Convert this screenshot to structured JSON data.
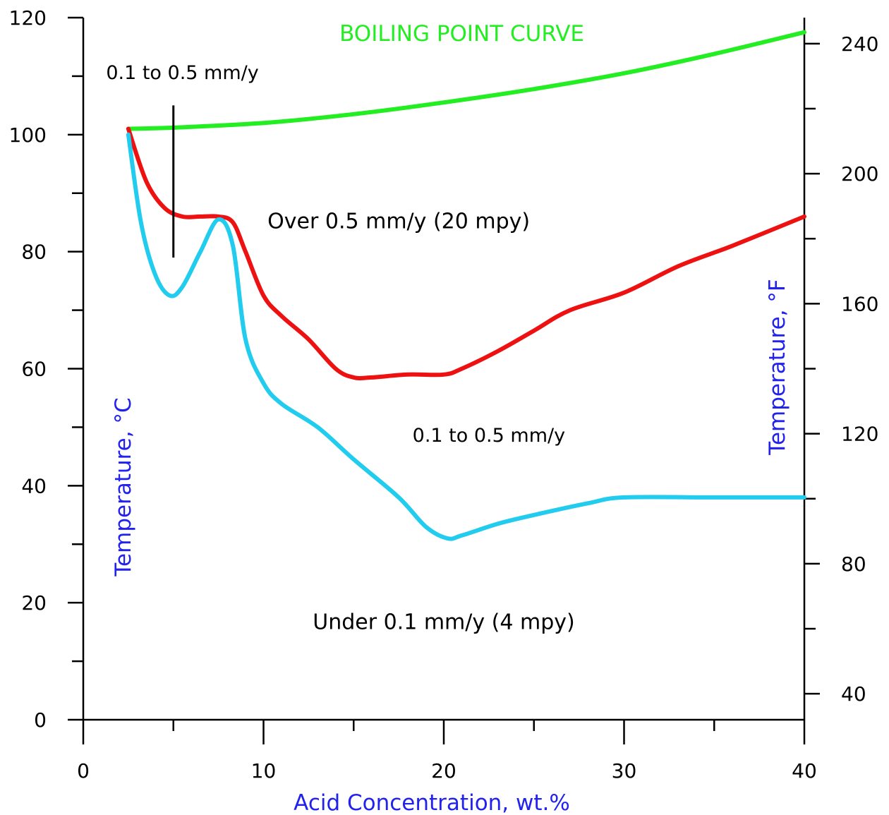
{
  "chart_data": {
    "type": "line",
    "xlabel": "Acid Concentration, wt.%",
    "ylabel": "Temperature, °C",
    "y2label": "Temperature, °F",
    "xlim": [
      0,
      40
    ],
    "ylim": [
      0,
      120
    ],
    "x_ticks": [
      "0",
      "10",
      "20",
      "30",
      "40"
    ],
    "y_ticks": [
      "0",
      "20",
      "40",
      "60",
      "80",
      "100",
      "120"
    ],
    "y2_ticks": [
      "40",
      "80",
      "120",
      "160",
      "200",
      "240"
    ],
    "y2_tick_values_F": [
      40,
      80,
      120,
      160,
      200,
      240
    ],
    "series": [
      {
        "name": "BOILING POINT CURVE",
        "color": "#22ee22",
        "x": [
          2.5,
          5,
          10,
          15,
          20,
          25,
          30,
          35,
          40
        ],
        "y": [
          101,
          101.2,
          102,
          103.5,
          105.5,
          107.8,
          110.5,
          113.8,
          117.5
        ]
      },
      {
        "color": "#ee1111",
        "x": [
          2.5,
          3.5,
          4.5,
          5.5,
          6.5,
          7.5,
          8.3,
          9,
          10,
          11,
          12.5,
          14,
          15,
          16,
          18,
          20,
          21,
          23,
          25,
          27,
          30,
          33,
          36,
          40
        ],
        "y": [
          101,
          92,
          87.5,
          86,
          86,
          86,
          85,
          80,
          72.5,
          69,
          65,
          60,
          58.5,
          58.5,
          59,
          59,
          60,
          63,
          66.5,
          70,
          73,
          77.5,
          81,
          86
        ]
      },
      {
        "color": "#22ccee",
        "x": [
          2.5,
          3.2,
          4,
          4.8,
          5.5,
          6.5,
          7.5,
          8.3,
          9,
          10,
          11,
          13,
          15,
          17.5,
          19,
          20.2,
          21,
          23,
          25,
          28,
          30,
          35,
          40
        ],
        "y": [
          100,
          85,
          76,
          72.5,
          74,
          80,
          85.5,
          81,
          65,
          57.5,
          54,
          50,
          44.5,
          38,
          33,
          31,
          31.5,
          33.5,
          35,
          37,
          38,
          38,
          38
        ]
      }
    ],
    "annotations": [
      {
        "text": "BOILING POINT CURVE",
        "x": 21,
        "y": 116
      },
      {
        "text": "0.1 to 0.5 mm/y",
        "x": 5.5,
        "y": 109.5
      },
      {
        "text": "Over 0.5 mm/y (20 mpy)",
        "x": 17.5,
        "y": 84
      },
      {
        "text": "0.1 to 0.5 mm/y",
        "x": 22.5,
        "y": 47.5
      },
      {
        "text": "Under 0.1 mm/y (4 mpy)",
        "x": 20,
        "y": 15.5
      }
    ],
    "marker_line": {
      "x": 5,
      "y_from": 79,
      "y_to": 105
    },
    "grid": false
  }
}
